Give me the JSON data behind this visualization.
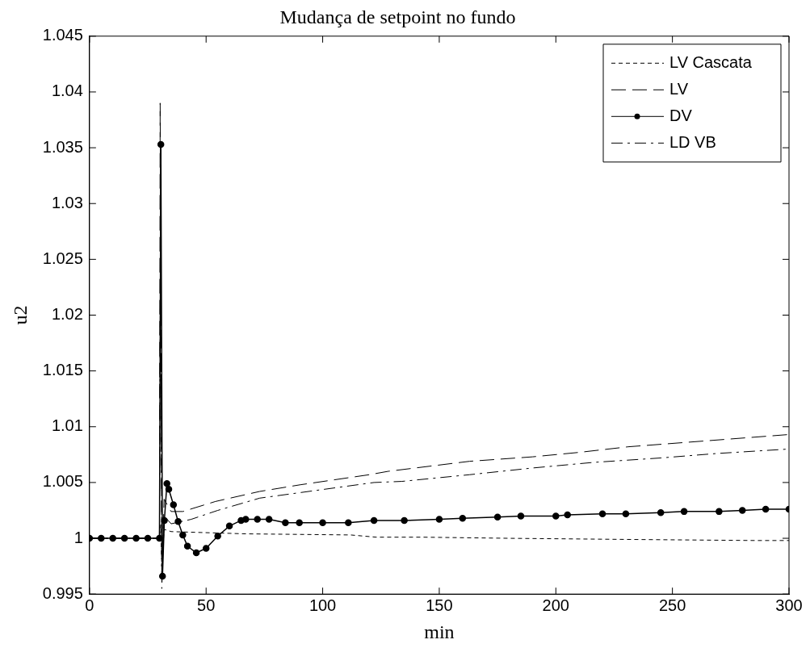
{
  "chart_data": {
    "type": "line",
    "title": "Mudança de setpoint no fundo",
    "xlabel": "min",
    "ylabel": "u2",
    "xlim": [
      0,
      300
    ],
    "xticks": [
      0,
      50,
      100,
      150,
      200,
      250,
      300
    ],
    "ylim": [
      0.995,
      1.045
    ],
    "yticks": [
      0.995,
      1,
      1.005,
      1.01,
      1.015,
      1.02,
      1.025,
      1.03,
      1.035,
      1.04,
      1.045
    ],
    "grid": false,
    "legend": "top right",
    "series": [
      {
        "name": "LV Cascata",
        "color": "#000000",
        "line_style": "dashed",
        "marker": "none",
        "x": [
          0,
          30,
          30.5,
          31,
          32,
          35,
          67,
          112,
          123,
          143,
          180,
          230,
          286,
          300
        ],
        "values": [
          1,
          1,
          1.0012,
          0.9975,
          1.0008,
          1.0006,
          1.0004,
          1.0003,
          1.0001,
          1.0001,
          1,
          0.9999,
          0.9998,
          0.9998
        ]
      },
      {
        "name": "LV",
        "color": "#000000",
        "line_style": "dashed",
        "marker": "none",
        "x": [
          0,
          30,
          30.3,
          31,
          32,
          35,
          40,
          54,
          73,
          90.5,
          120,
          128,
          163,
          190,
          210,
          231,
          300
        ],
        "values": [
          1,
          1,
          1.039,
          0.9965,
          1.0035,
          1.0024,
          1.0024,
          1.0033,
          1.0042,
          1.0048,
          1.0057,
          1.006,
          1.0069,
          1.0073,
          1.0077,
          1.0082,
          1.0093
        ]
      },
      {
        "name": "DV",
        "color": "#000000",
        "line_style": "solid",
        "marker": "circle",
        "x": [
          0,
          5,
          10,
          15,
          20,
          25,
          30,
          30.6,
          31.3,
          32.1,
          33.2,
          34,
          36,
          38,
          40,
          42,
          45.8,
          50,
          55,
          60,
          65,
          67,
          72,
          77,
          84,
          90,
          100,
          111,
          122,
          135,
          150,
          160,
          175,
          185,
          200,
          205,
          220,
          230,
          245,
          255,
          270,
          280,
          290,
          300
        ],
        "values": [
          1,
          1,
          1,
          1,
          1,
          1,
          1,
          1.0353,
          0.9966,
          1.0016,
          1.0049,
          1.0044,
          1.003,
          1.0015,
          1.0003,
          0.9993,
          0.9987,
          0.9991,
          1.0002,
          1.0011,
          1.0016,
          1.0017,
          1.0017,
          1.0017,
          1.0014,
          1.0014,
          1.0014,
          1.0014,
          1.0016,
          1.0016,
          1.0017,
          1.0018,
          1.0019,
          1.002,
          1.002,
          1.0021,
          1.0022,
          1.0022,
          1.0023,
          1.0024,
          1.0024,
          1.0025,
          1.0026,
          1.0026
        ]
      },
      {
        "name": "LD VB",
        "color": "#000000",
        "line_style": "dashed",
        "marker": "none",
        "x": [
          0,
          30,
          30.5,
          31,
          32,
          35,
          43.6,
          55,
          73,
          90.5,
          122,
          134,
          163,
          190,
          216,
          245,
          269,
          300
        ],
        "values": [
          1,
          1,
          1.03,
          0.9955,
          1.002,
          1.0013,
          1.0017,
          1.0025,
          1.0036,
          1.0041,
          1.005,
          1.0051,
          1.0057,
          1.0063,
          1.0068,
          1.0072,
          1.0076,
          1.008
        ]
      }
    ]
  }
}
